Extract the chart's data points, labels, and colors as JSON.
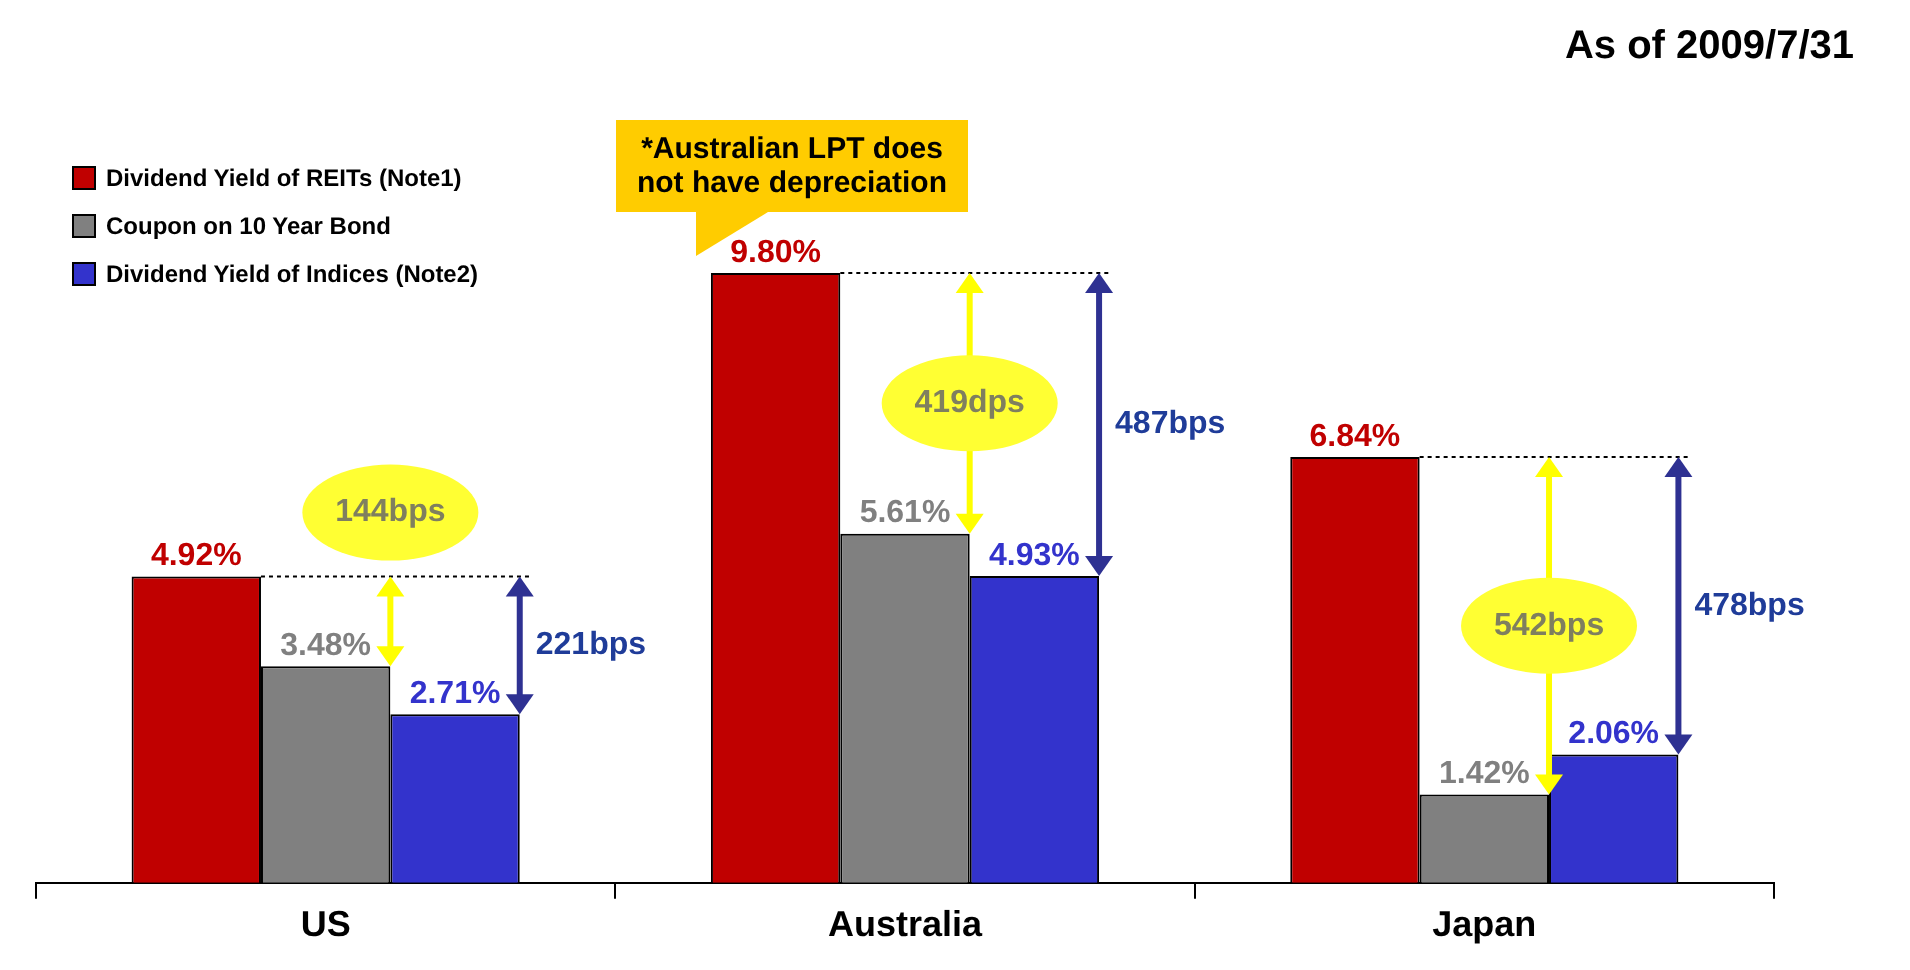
{
  "chart_data": {
    "type": "bar",
    "subtitle": "As of 2009/7/31",
    "categories": [
      "US",
      "Australia",
      "Japan"
    ],
    "series": [
      {
        "name": "Dividend Yield of REITs (Note1)",
        "color": "#c00000",
        "values": [
          4.92,
          9.8,
          6.84
        ],
        "value_labels": [
          "4.92%",
          "9.80%",
          "6.84%"
        ]
      },
      {
        "name": "Coupon on 10 Year Bond",
        "color": "#808080",
        "values": [
          3.48,
          5.61,
          1.42
        ],
        "value_labels": [
          "3.48%",
          "5.61%",
          "1.42%"
        ]
      },
      {
        "name": "Dividend Yield of Indices (Note2)",
        "color": "#3333cc",
        "values": [
          2.71,
          4.93,
          2.06
        ],
        "value_labels": [
          "2.71%",
          "4.93%",
          "2.06%"
        ]
      }
    ],
    "legend": "top left",
    "annotations": [
      "144bps",
      "221bps",
      "419dps",
      "487bps",
      "542bps",
      "478bps",
      "*Australian LPT does not have depreciation"
    ]
  }
}
